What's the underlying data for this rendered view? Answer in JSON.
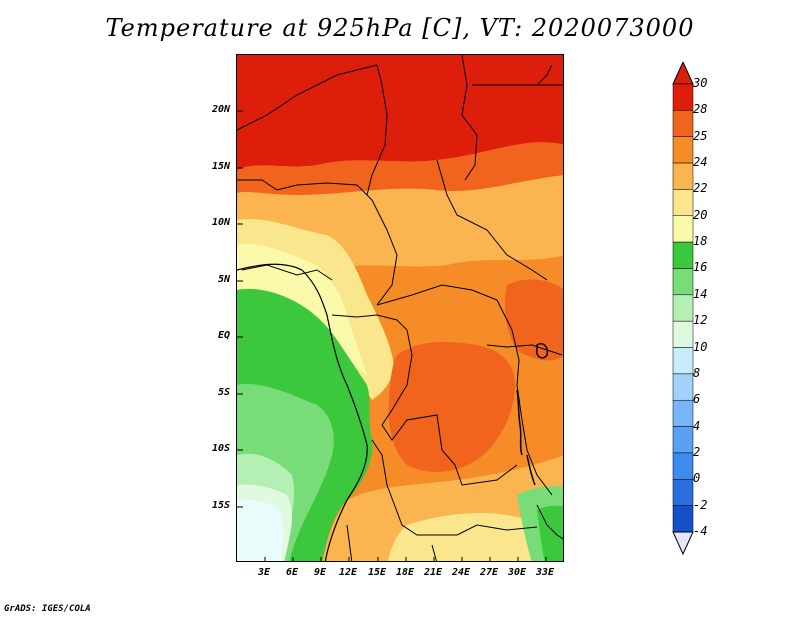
{
  "title": "Temperature at 925hPa [C], VT: 2020073000",
  "credit": "GrADS: IGES/COLA",
  "map": {
    "variable": "Temperature at 925hPa",
    "units": "C",
    "valid_time": "2020073000",
    "lon_range": [
      0,
      35
    ],
    "lat_range": [
      -20,
      25
    ],
    "lat_labels": [
      {
        "text": "20N",
        "value": 20
      },
      {
        "text": "15N",
        "value": 15
      },
      {
        "text": "10N",
        "value": 10
      },
      {
        "text": "5N",
        "value": 5
      },
      {
        "text": "EQ",
        "value": 0
      },
      {
        "text": "5S",
        "value": -5
      },
      {
        "text": "10S",
        "value": -10
      },
      {
        "text": "15S",
        "value": -15
      }
    ],
    "lon_labels": [
      {
        "text": "3E",
        "value": 3
      },
      {
        "text": "6E",
        "value": 6
      },
      {
        "text": "9E",
        "value": 9
      },
      {
        "text": "12E",
        "value": 12
      },
      {
        "text": "15E",
        "value": 15
      },
      {
        "text": "18E",
        "value": 18
      },
      {
        "text": "21E",
        "value": 21
      },
      {
        "text": "24E",
        "value": 24
      },
      {
        "text": "27E",
        "value": 27
      },
      {
        "text": "30E",
        "value": 30
      },
      {
        "text": "33E",
        "value": 33
      }
    ]
  },
  "colorbar": {
    "levels": [
      "-4",
      "-2",
      "0",
      "2",
      "4",
      "6",
      "8",
      "10",
      "12",
      "14",
      "16",
      "18",
      "20",
      "22",
      "24",
      "25",
      "28",
      "30"
    ],
    "colors": [
      "#0a0a78",
      "#1450c8",
      "#2a6ee0",
      "#3c8cf0",
      "#5aa0f5",
      "#78b4fa",
      "#a0d2fa",
      "#c8ebfa",
      "#e0fae0",
      "#b4f0b4",
      "#78dc78",
      "#3cc83c",
      "#fafaaa",
      "#fae68c",
      "#fab450",
      "#f58c28",
      "#f0641e",
      "#dc1e0a"
    ],
    "below_color": "#e6e6fa",
    "above_color": "#dc1e0a"
  }
}
